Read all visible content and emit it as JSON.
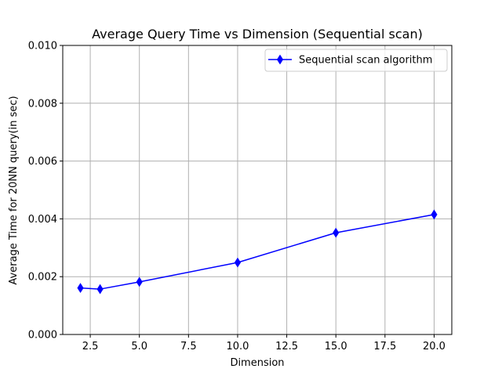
{
  "chart_data": {
    "type": "line",
    "title": "Average Query Time vs Dimension (Sequential scan)",
    "xlabel": "Dimension",
    "ylabel": "Average Time for 20NN query(in sec)",
    "xlim": [
      1.1,
      20.9
    ],
    "ylim": [
      0.0,
      0.01
    ],
    "x_ticks": [
      2.5,
      5.0,
      7.5,
      10.0,
      12.5,
      15.0,
      17.5,
      20.0
    ],
    "x_tick_labels": [
      "2.5",
      "5.0",
      "7.5",
      "10.0",
      "12.5",
      "15.0",
      "17.5",
      "20.0"
    ],
    "y_ticks": [
      0.0,
      0.002,
      0.004,
      0.006,
      0.008,
      0.01
    ],
    "y_tick_labels": [
      "0.000",
      "0.002",
      "0.004",
      "0.006",
      "0.008",
      "0.010"
    ],
    "grid": true,
    "legend_position": "upper right",
    "x": [
      2,
      3,
      5,
      10,
      15,
      20
    ],
    "series": [
      {
        "name": "Sequential scan algorithm",
        "values": [
          0.00161,
          0.00157,
          0.00182,
          0.00249,
          0.00352,
          0.00415
        ],
        "color": "#0000ff",
        "marker": "thin_diamond"
      }
    ]
  }
}
